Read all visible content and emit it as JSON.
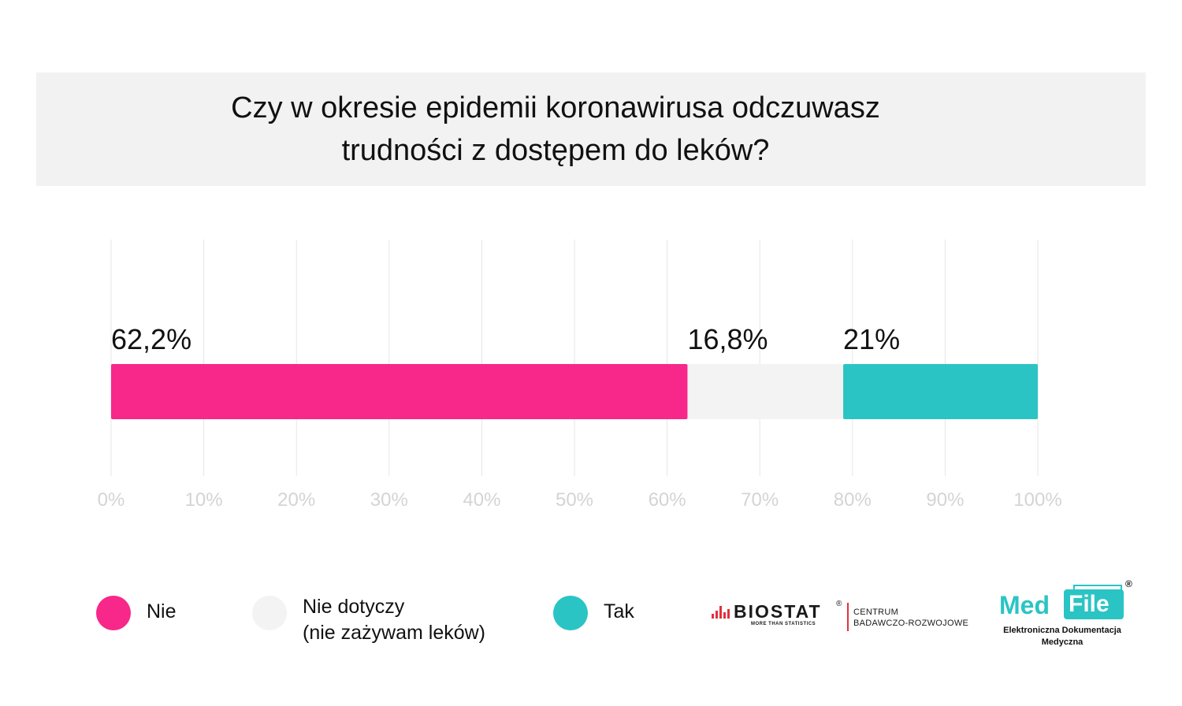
{
  "title": {
    "line1": "Czy w okresie epidemii koronawirusa odczuwasz",
    "line2": "trudności z dostępem do leków?"
  },
  "chart_data": {
    "type": "bar",
    "orientation": "horizontal",
    "stacked": true,
    "categories": [
      ""
    ],
    "series": [
      {
        "name": "Nie",
        "values": [
          62.2
        ],
        "label": "62,2%",
        "color": "#f7288a"
      },
      {
        "name": "Nie dotyczy (nie zażywam leków)",
        "values": [
          16.8
        ],
        "label": "16,8%",
        "color": "#f3f3f3"
      },
      {
        "name": "Tak",
        "values": [
          21
        ],
        "label": "21%",
        "color": "#2bc4c4"
      }
    ],
    "xlim": [
      0,
      100
    ],
    "xticks": [
      "0%",
      "10%",
      "20%",
      "30%",
      "40%",
      "50%",
      "60%",
      "70%",
      "80%",
      "90%",
      "100%"
    ],
    "grid": true,
    "legend_placement": "bottom"
  },
  "legend": [
    {
      "lines": [
        "Nie"
      ],
      "color": "#f7288a"
    },
    {
      "lines": [
        "Nie dotyczy",
        "(nie zażywam leków)"
      ],
      "color": "#f3f3f3"
    },
    {
      "lines": [
        "Tak"
      ],
      "color": "#2bc4c4"
    }
  ],
  "logos": {
    "biostat": {
      "word": "BIOSTAT",
      "reg": "®",
      "tagline": "MORE THAN STATISTICS",
      "line1": "CENTRUM",
      "line2": "BADAWCZO-ROZWOJOWE"
    },
    "medfile": {
      "med": "Med",
      "file": "File",
      "reg": "®",
      "line1": "Elektroniczna Dokumentacja",
      "line2": "Medyczna"
    }
  }
}
